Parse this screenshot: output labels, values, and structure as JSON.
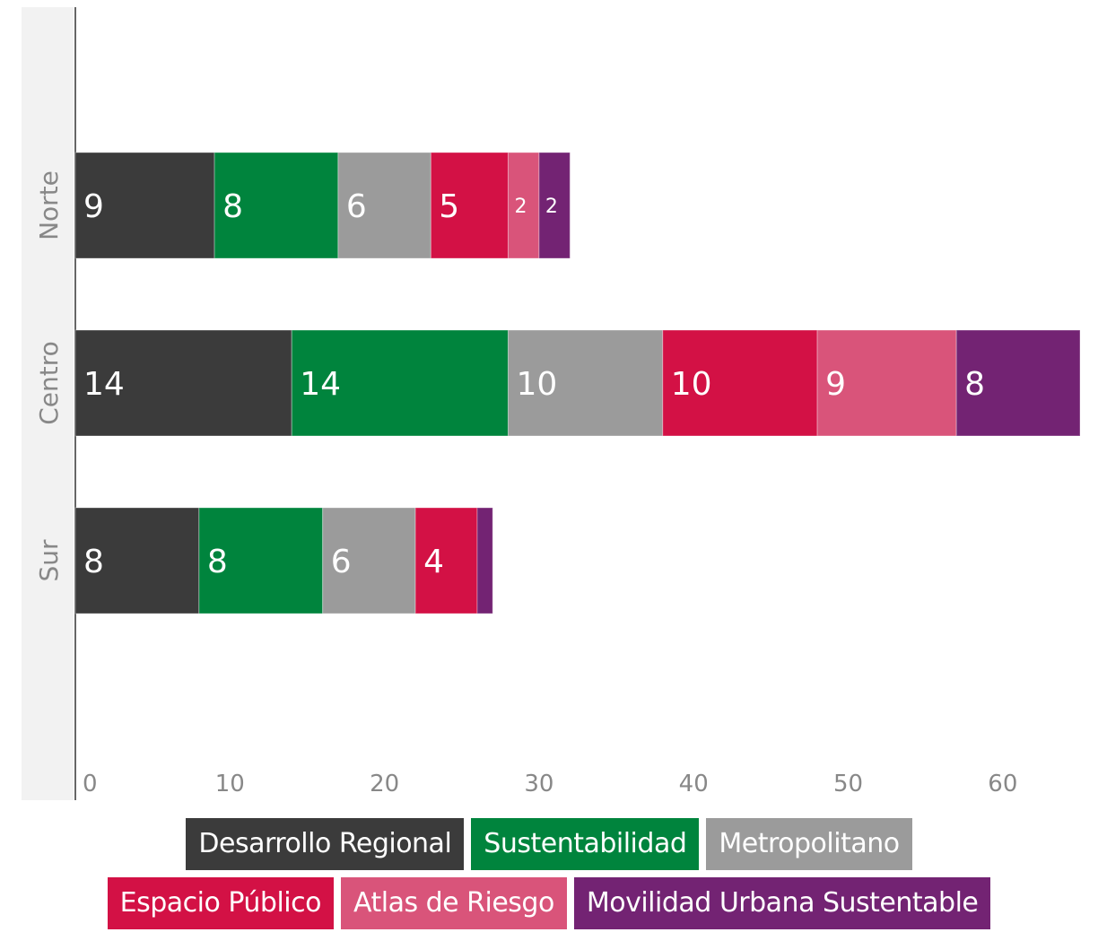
{
  "chart_data": {
    "type": "bar",
    "orientation": "horizontal",
    "stacked": true,
    "categories": [
      "Norte",
      "Centro",
      "Sur"
    ],
    "series": [
      {
        "name": "Desarrollo Regional",
        "color": "#3b3b3b",
        "values": [
          9,
          14,
          8
        ]
      },
      {
        "name": "Sustentabilidad",
        "color": "#00843d",
        "values": [
          8,
          14,
          8
        ]
      },
      {
        "name": "Metropolitano",
        "color": "#9b9b9b",
        "values": [
          6,
          10,
          6
        ]
      },
      {
        "name": "Espacio Público",
        "color": "#d31145",
        "values": [
          5,
          10,
          4
        ]
      },
      {
        "name": "Atlas de Riesgo",
        "color": "#d9547a",
        "values": [
          2,
          9,
          0
        ]
      },
      {
        "name": "Movilidad Urbana Sustentable",
        "color": "#732373",
        "values": [
          2,
          8,
          1
        ]
      }
    ],
    "value_labels": [
      [
        "9",
        "8",
        "6",
        "5",
        "2",
        "2"
      ],
      [
        "14",
        "14",
        "10",
        "10",
        "9",
        "8"
      ],
      [
        "8",
        "8",
        "6",
        "4",
        "",
        ""
      ]
    ],
    "xticks": [
      "0",
      "10",
      "20",
      "30",
      "40",
      "50",
      "60"
    ],
    "xlim": [
      0,
      65
    ],
    "grid": false,
    "legend": "bottom"
  }
}
